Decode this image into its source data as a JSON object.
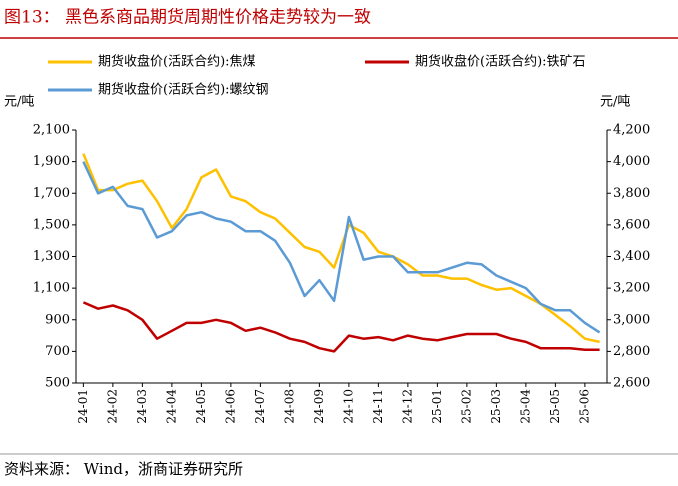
{
  "chart_data": {
    "type": "line",
    "title": "图13： 黑色系商品期货周期性价格走势较为一致",
    "y_unit": "元/吨",
    "y2_unit": "元/吨",
    "source": "资料来源：  Wind，浙商证券研究所",
    "categories": [
      "24-01",
      null,
      "24-02",
      null,
      "24-03",
      null,
      "24-04",
      null,
      "24-05",
      null,
      "24-06",
      null,
      "24-07",
      null,
      "24-08",
      null,
      "24-09",
      null,
      "24-10",
      null,
      "24-11",
      null,
      "24-12",
      null,
      "25-01",
      null,
      "25-02",
      null,
      "25-03",
      null,
      "25-04",
      null,
      "25-05",
      null,
      "25-06",
      null
    ],
    "series": [
      {
        "name": "期货收盘价(活跃合约):焦煤",
        "color": "#ffc000",
        "axis": "y",
        "values": [
          1950,
          1720,
          1720,
          1760,
          1780,
          1650,
          1480,
          1600,
          1800,
          1850,
          1680,
          1650,
          1580,
          1540,
          1450,
          1360,
          1330,
          1230,
          1500,
          1450,
          1330,
          1300,
          1250,
          1180,
          1180,
          1160,
          1160,
          1120,
          1090,
          1100,
          1050,
          1000,
          930,
          860,
          780,
          760
        ]
      },
      {
        "name": "期货收盘价(活跃合约):铁矿石",
        "color": "#c00000",
        "axis": "y",
        "values": [
          1010,
          970,
          990,
          960,
          900,
          780,
          830,
          880,
          880,
          900,
          880,
          830,
          850,
          820,
          780,
          760,
          720,
          700,
          800,
          780,
          790,
          770,
          800,
          780,
          770,
          790,
          810,
          810,
          810,
          780,
          760,
          720,
          720,
          720,
          710,
          710
        ]
      },
      {
        "name": "期货收盘价(活跃合约):螺纹钢",
        "color": "#5b9bd5",
        "axis": "y2",
        "values": [
          4000,
          3800,
          3840,
          3720,
          3700,
          3520,
          3560,
          3660,
          3680,
          3640,
          3620,
          3560,
          3560,
          3500,
          3360,
          3150,
          3250,
          3120,
          3650,
          3380,
          3400,
          3400,
          3300,
          3300,
          3300,
          3330,
          3360,
          3350,
          3280,
          3240,
          3200,
          3100,
          3060,
          3060,
          2980,
          2920
        ]
      }
    ],
    "ylim": [
      500,
      2100
    ],
    "yticks": [
      500,
      700,
      900,
      {
        "value": 1100,
        "label": "1,100"
      },
      {
        "value": 1300,
        "label": "1,300"
      },
      {
        "value": 1500,
        "label": "1,500"
      },
      {
        "value": 1700,
        "label": "1,700"
      },
      {
        "value": 1900,
        "label": "1,900"
      },
      {
        "value": 2100,
        "label": "2,100"
      }
    ],
    "y2lim": [
      2600,
      4200
    ],
    "y2ticks": [
      {
        "value": 2600,
        "label": "2,600"
      },
      {
        "value": 2800,
        "label": "2,800"
      },
      {
        "value": 3000,
        "label": "3,000"
      },
      {
        "value": 3200,
        "label": "3,200"
      },
      {
        "value": 3400,
        "label": "3,400"
      },
      {
        "value": 3600,
        "label": "3,600"
      },
      {
        "value": 3800,
        "label": "3,800"
      },
      {
        "value": 4000,
        "label": "4,000"
      },
      {
        "value": 4200,
        "label": "4,200"
      }
    ]
  }
}
